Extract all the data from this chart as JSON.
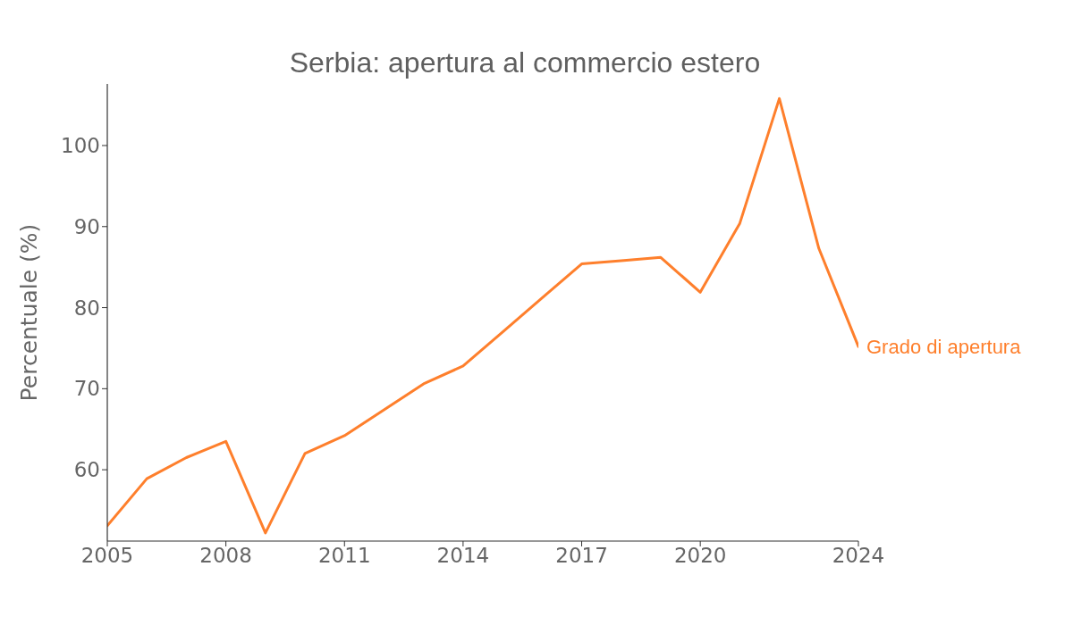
{
  "chart_data": {
    "type": "line",
    "title": "Serbia: apertura al commercio estero",
    "ylabel": "Percentuale (%)",
    "x": [
      2005,
      2006,
      2007,
      2008,
      2009,
      2010,
      2011,
      2012,
      2013,
      2014,
      2015,
      2016,
      2017,
      2018,
      2019,
      2020,
      2021,
      2022,
      2023,
      2024
    ],
    "series": [
      {
        "name": "Grado di apertura",
        "color": "#fe7f2c",
        "values": [
          53.1,
          58.9,
          61.5,
          63.5,
          52.2,
          62.0,
          64.2,
          67.4,
          70.6,
          72.8,
          77.0,
          81.2,
          85.4,
          85.8,
          86.2,
          81.9,
          90.4,
          105.8,
          87.3,
          75.2
        ]
      }
    ],
    "xlim": [
      2005,
      2024
    ],
    "xticks": [
      2005,
      2008,
      2011,
      2014,
      2017,
      2020,
      2024
    ],
    "ylim": [
      51.2,
      107.6
    ],
    "yticks": [
      60,
      70,
      80,
      90,
      100
    ],
    "marker": "none",
    "line_style": "solid"
  }
}
